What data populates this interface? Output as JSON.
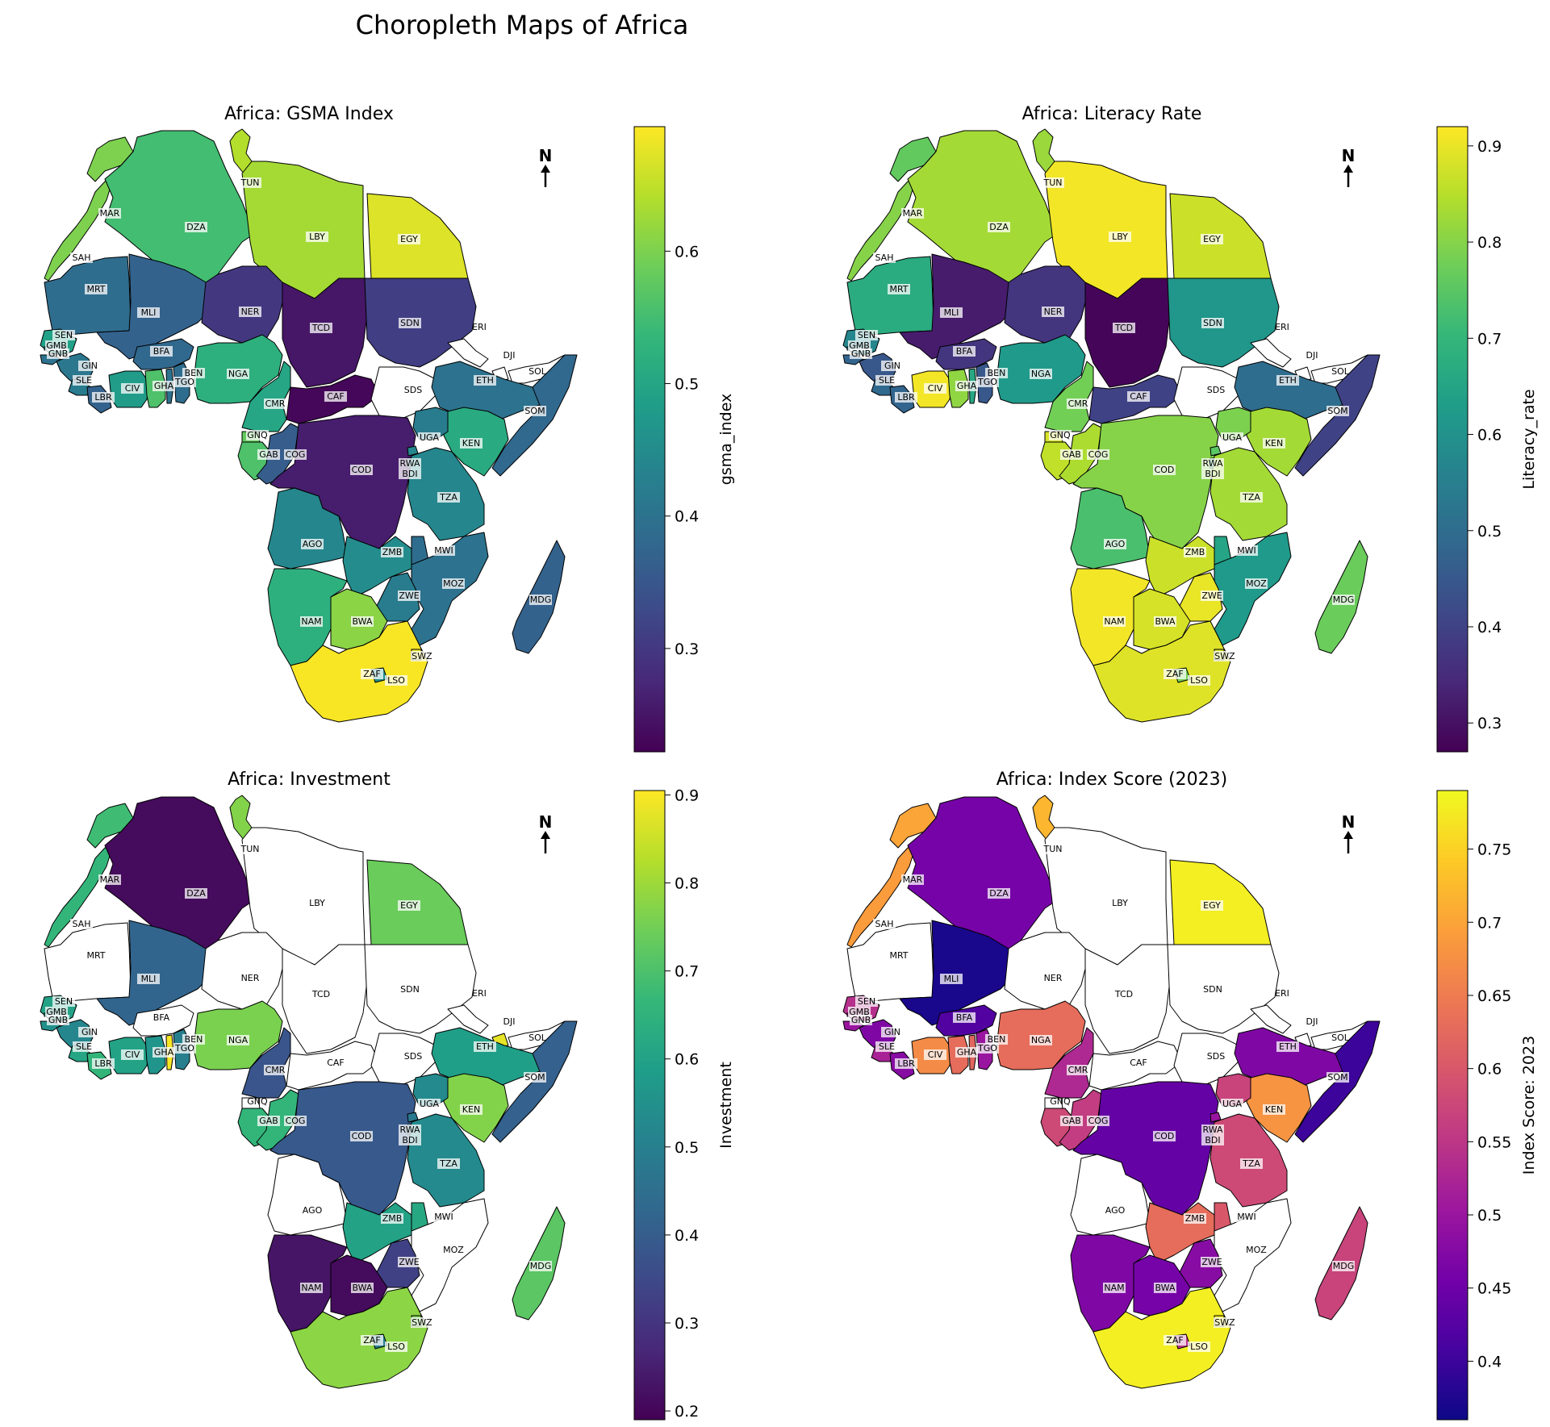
{
  "figure": {
    "title": "Choropleth Maps of Africa"
  },
  "north_label": "N",
  "colors": {
    "viridis": [
      "#440154",
      "#482878",
      "#3e4989",
      "#31688e",
      "#26828e",
      "#1f9e89",
      "#35b779",
      "#6ece58",
      "#b5de2b",
      "#fde725"
    ],
    "plasma": [
      "#0d0887",
      "#46039f",
      "#7201a8",
      "#9c179e",
      "#bd3786",
      "#d8576b",
      "#ed7953",
      "#fb9f3a",
      "#fdca26",
      "#f0f921"
    ],
    "missing": "#ffffff",
    "border": "#000000"
  },
  "chart_data": [
    {
      "type": "choropleth",
      "title": "Africa: GSMA Index",
      "colorbar_label": "gsma_index",
      "colormap": "viridis",
      "vmin": 0.222,
      "vmax": 0.694,
      "ticks": [
        0.3,
        0.4,
        0.5,
        0.6
      ],
      "values": {
        "MAR": 0.6,
        "SAH": 0.6,
        "DZA": 0.55,
        "TUN": 0.64,
        "LBY": 0.63,
        "EGY": 0.67,
        "MRT": 0.39,
        "MLI": 0.37,
        "NER": 0.3,
        "TCD": 0.25,
        "SDN": 0.31,
        "ERI": null,
        "DJI": null,
        "SOL": null,
        "SEN": 0.49,
        "GMB": 0.44,
        "GNB": 0.4,
        "GIN": 0.41,
        "SLE": 0.42,
        "LBR": 0.37,
        "CIV": 0.48,
        "GHA": 0.56,
        "BFA": 0.38,
        "TGO": 0.4,
        "BEN": 0.39,
        "NGA": 0.52,
        "CMR": 0.5,
        "CAF": 0.23,
        "SDS": null,
        "ETH": 0.4,
        "SOM": 0.38,
        "KEN": 0.51,
        "UGA": 0.42,
        "GNQ": 0.58,
        "GAB": 0.56,
        "COG": 0.36,
        "COD": 0.26,
        "RWA": 0.44,
        "BDI": 0.4,
        "TZA": 0.44,
        "AGO": 0.44,
        "ZMB": 0.45,
        "MWI": 0.39,
        "MOZ": 0.4,
        "ZWE": 0.42,
        "MDG": 0.37,
        "NAM": 0.52,
        "BWA": 0.61,
        "ZAF": 0.69,
        "SWZ": 0.68,
        "LSO": 0.46
      }
    },
    {
      "type": "choropleth",
      "title": "Africa: Literacy Rate",
      "colorbar_label": "Literacy_rate",
      "colormap": "viridis",
      "vmin": 0.27,
      "vmax": 0.92,
      "ticks": [
        0.3,
        0.4,
        0.5,
        0.6,
        0.7,
        0.8,
        0.9
      ],
      "values": {
        "MAR": 0.76,
        "SAH": 0.8,
        "DZA": 0.83,
        "TUN": 0.82,
        "LBY": 0.91,
        "EGY": 0.87,
        "MRT": 0.67,
        "MLI": 0.32,
        "NER": 0.37,
        "TCD": 0.28,
        "SDN": 0.61,
        "ERI": null,
        "DJI": null,
        "SOL": null,
        "SEN": 0.57,
        "GMB": 0.55,
        "GNB": 0.48,
        "GIN": 0.45,
        "SLE": 0.49,
        "LBR": 0.48,
        "CIV": 0.91,
        "GHA": 0.81,
        "BFA": 0.37,
        "TGO": 0.66,
        "BEN": 0.45,
        "NGA": 0.62,
        "CMR": 0.78,
        "CAF": 0.4,
        "SDS": null,
        "ETH": 0.5,
        "SOM": 0.4,
        "KEN": 0.83,
        "UGA": 0.79,
        "GNQ": 0.88,
        "GAB": 0.86,
        "COG": 0.84,
        "COD": 0.8,
        "RWA": 0.75,
        "BDI": 0.7,
        "TZA": 0.83,
        "AGO": 0.73,
        "ZMB": 0.87,
        "MWI": 0.65,
        "MOZ": 0.62,
        "ZWE": 0.9,
        "MDG": 0.77,
        "NAM": 0.91,
        "BWA": 0.88,
        "ZAF": 0.89,
        "SWZ": 0.87,
        "LSO": 0.78
      }
    },
    {
      "type": "choropleth",
      "title": "Africa: Investment",
      "colorbar_label": "Investment",
      "colormap": "viridis",
      "vmin": 0.19,
      "vmax": 0.905,
      "ticks": [
        0.2,
        0.3,
        0.4,
        0.5,
        0.6,
        0.7,
        0.8,
        0.9
      ],
      "values": {
        "MAR": 0.68,
        "SAH": 0.66,
        "DZA": 0.21,
        "TUN": 0.77,
        "LBY": null,
        "EGY": 0.74,
        "MRT": null,
        "MLI": 0.42,
        "NER": null,
        "TCD": null,
        "SDN": null,
        "ERI": null,
        "DJI": 0.88,
        "SOL": null,
        "SEN": 0.6,
        "GMB": 0.58,
        "GNB": 0.55,
        "GIN": 0.52,
        "SLE": 0.61,
        "LBR": 0.66,
        "CIV": 0.6,
        "GHA": 0.56,
        "BFA": null,
        "TGO": 0.9,
        "BEN": 0.5,
        "NGA": 0.76,
        "CMR": 0.38,
        "CAF": null,
        "SDS": null,
        "ETH": 0.59,
        "SOM": 0.41,
        "KEN": 0.77,
        "UGA": 0.53,
        "GNQ": null,
        "GAB": 0.66,
        "COG": 0.66,
        "COD": 0.39,
        "RWA": 0.48,
        "BDI": 0.45,
        "TZA": 0.53,
        "AGO": null,
        "ZMB": 0.6,
        "MWI": 0.62,
        "MOZ": null,
        "ZWE": 0.33,
        "MDG": 0.72,
        "NAM": 0.23,
        "BWA": 0.21,
        "ZAF": 0.78,
        "SWZ": 0.76,
        "LSO": 0.5
      }
    },
    {
      "type": "choropleth",
      "title": "Africa: Index Score (2023)",
      "colorbar_label": "Index Score: 2023",
      "colormap": "plasma",
      "vmin": 0.36,
      "vmax": 0.79,
      "ticks": [
        0.4,
        0.45,
        0.5,
        0.55,
        0.6,
        0.65,
        0.7,
        0.75
      ],
      "values": {
        "MAR": 0.7,
        "SAH": 0.69,
        "DZA": 0.46,
        "TUN": 0.72,
        "LBY": null,
        "EGY": 0.78,
        "MRT": null,
        "MLI": 0.37,
        "NER": null,
        "TCD": null,
        "SDN": null,
        "ERI": null,
        "DJI": null,
        "SOL": null,
        "SEN": 0.54,
        "GMB": 0.53,
        "GNB": 0.5,
        "GIN": 0.47,
        "SLE": 0.52,
        "LBR": 0.48,
        "CIV": 0.67,
        "GHA": 0.63,
        "BFA": 0.42,
        "TGO": 0.62,
        "BEN": 0.5,
        "NGA": 0.63,
        "CMR": 0.53,
        "CAF": null,
        "SDS": null,
        "ETH": 0.47,
        "SOM": 0.4,
        "KEN": 0.68,
        "UGA": 0.57,
        "GNQ": null,
        "GAB": 0.58,
        "COG": 0.56,
        "COD": 0.44,
        "RWA": 0.5,
        "BDI": 0.48,
        "TZA": 0.58,
        "AGO": null,
        "ZMB": 0.63,
        "MWI": 0.6,
        "MOZ": null,
        "ZWE": 0.48,
        "MDG": 0.57,
        "NAM": 0.47,
        "BWA": 0.46,
        "ZAF": 0.78,
        "SWZ": 0.77,
        "LSO": 0.55
      }
    }
  ]
}
